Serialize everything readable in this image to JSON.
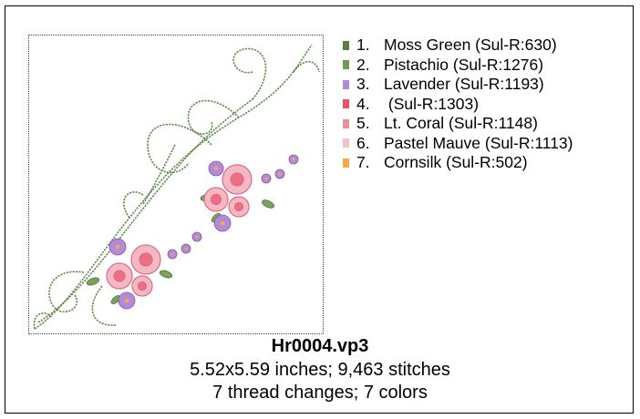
{
  "design": {
    "file_name": "Hr0004.vp3",
    "dimensions_line": "5.52x5.59 inches; 9,463 stitches",
    "changes_line": "7 thread changes; 7 colors"
  },
  "threads": [
    {
      "num": "1.",
      "name": "Moss Green (Sul-R:630)",
      "color": "#5a7d45"
    },
    {
      "num": "2.",
      "name": "Pistachio (Sul-R:1276)",
      "color": "#6f9a55"
    },
    {
      "num": "3.",
      "name": "Lavender (Sul-R:1193)",
      "color": "#b38ad8"
    },
    {
      "num": "4.",
      "name": " (Sul-R:1303)",
      "color": "#e8536b"
    },
    {
      "num": "5.",
      "name": "Lt. Coral (Sul-R:1148)",
      "color": "#ef8c98"
    },
    {
      "num": "6.",
      "name": "Pastel Mauve (Sul-R:1113)",
      "color": "#f3c3c3"
    },
    {
      "num": "7.",
      "name": "Cornsilk (Sul-R:502)",
      "color": "#f5a94a"
    }
  ]
}
